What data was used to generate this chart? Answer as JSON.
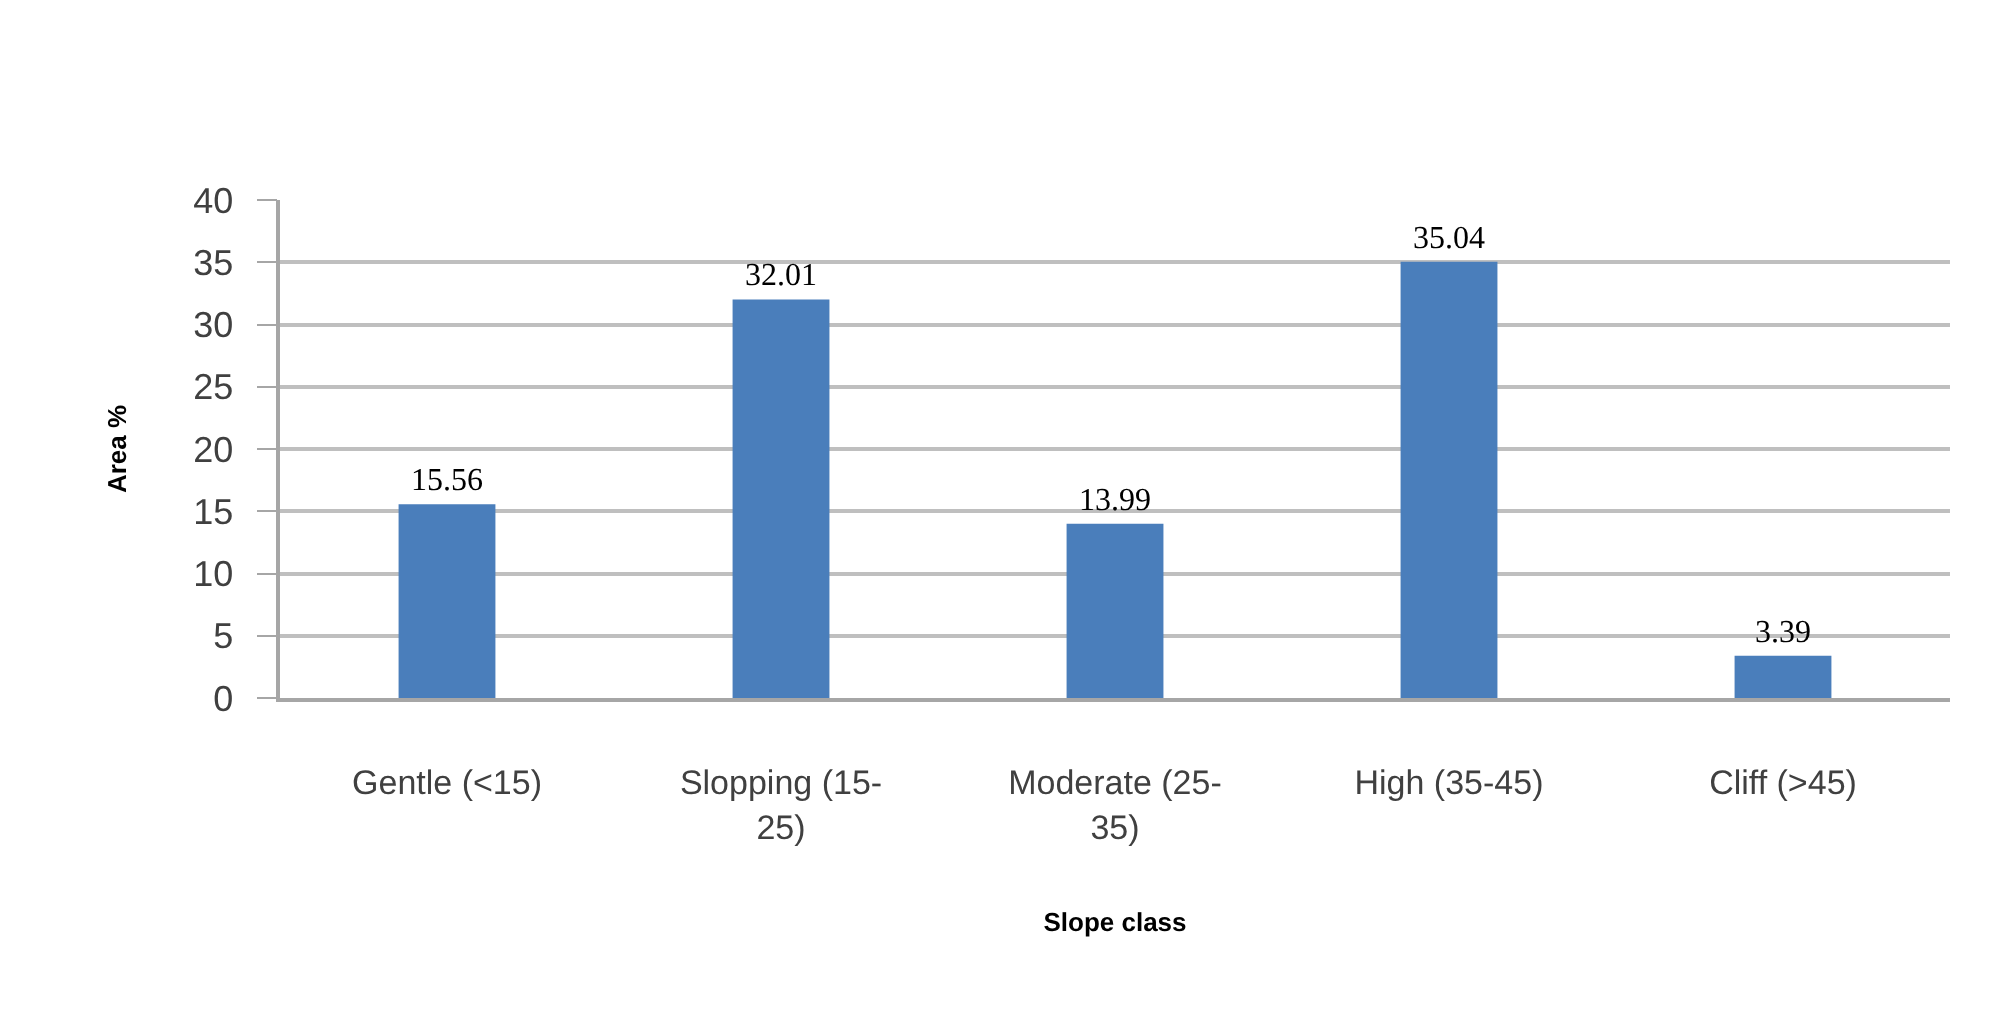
{
  "chart_data": {
    "type": "bar",
    "xlabel": "Slope class",
    "ylabel": "Area %",
    "categories": [
      "Gentle (<15)",
      "Slopping (15-25)",
      "Moderate (25-35)",
      "High (35-45)",
      "Cliff (>45)"
    ],
    "values": [
      15.56,
      32.01,
      13.99,
      35.04,
      3.39
    ],
    "color": "#4a7ebb",
    "ylim": [
      0,
      40
    ],
    "yticks": [
      0,
      5,
      10,
      15,
      20,
      25,
      30,
      35,
      40
    ],
    "grid": "y",
    "data_labels": true
  }
}
